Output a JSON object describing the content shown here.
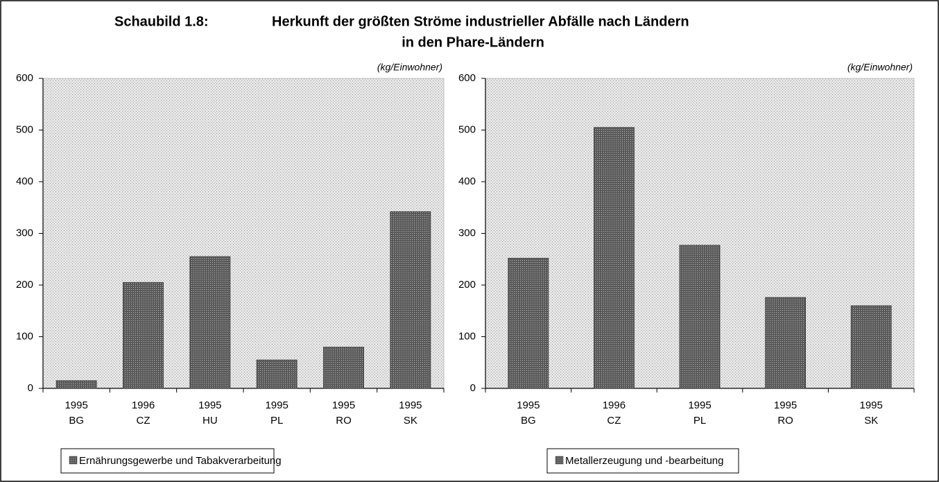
{
  "header": {
    "label": "Schaubild 1.8:",
    "title_lines": [
      "Herkunft der größten Ströme industrieller Abfälle nach Ländern",
      "in den Phare-Ländern"
    ]
  },
  "chart_data": [
    {
      "type": "bar",
      "unit_label": "(kg/Einwohner)",
      "categories": [
        [
          "1995",
          "BG"
        ],
        [
          "1996",
          "CZ"
        ],
        [
          "1995",
          "HU"
        ],
        [
          "1995",
          "PL"
        ],
        [
          "1995",
          "RO"
        ],
        [
          "1995",
          "SK"
        ]
      ],
      "series": [
        {
          "name": "Ernährungsgewerbe und Tabakverarbeitung",
          "color": "#5a5a5a",
          "values": [
            15,
            205,
            255,
            55,
            80,
            342
          ]
        }
      ],
      "ylim": [
        0,
        600
      ],
      "yticks": [
        0,
        100,
        200,
        300,
        400,
        500,
        600
      ]
    },
    {
      "type": "bar",
      "unit_label": "(kg/Einwohner)",
      "categories": [
        [
          "1995",
          "BG"
        ],
        [
          "1996",
          "CZ"
        ],
        [
          "1995",
          "PL"
        ],
        [
          "1995",
          "RO"
        ],
        [
          "1995",
          "SK"
        ]
      ],
      "series": [
        {
          "name": "Metallerzeugung und -bearbeitung",
          "color": "#5a5a5a",
          "values": [
            252,
            505,
            277,
            176,
            160
          ]
        }
      ],
      "ylim": [
        0,
        600
      ],
      "yticks": [
        0,
        100,
        200,
        300,
        400,
        500,
        600
      ]
    }
  ]
}
